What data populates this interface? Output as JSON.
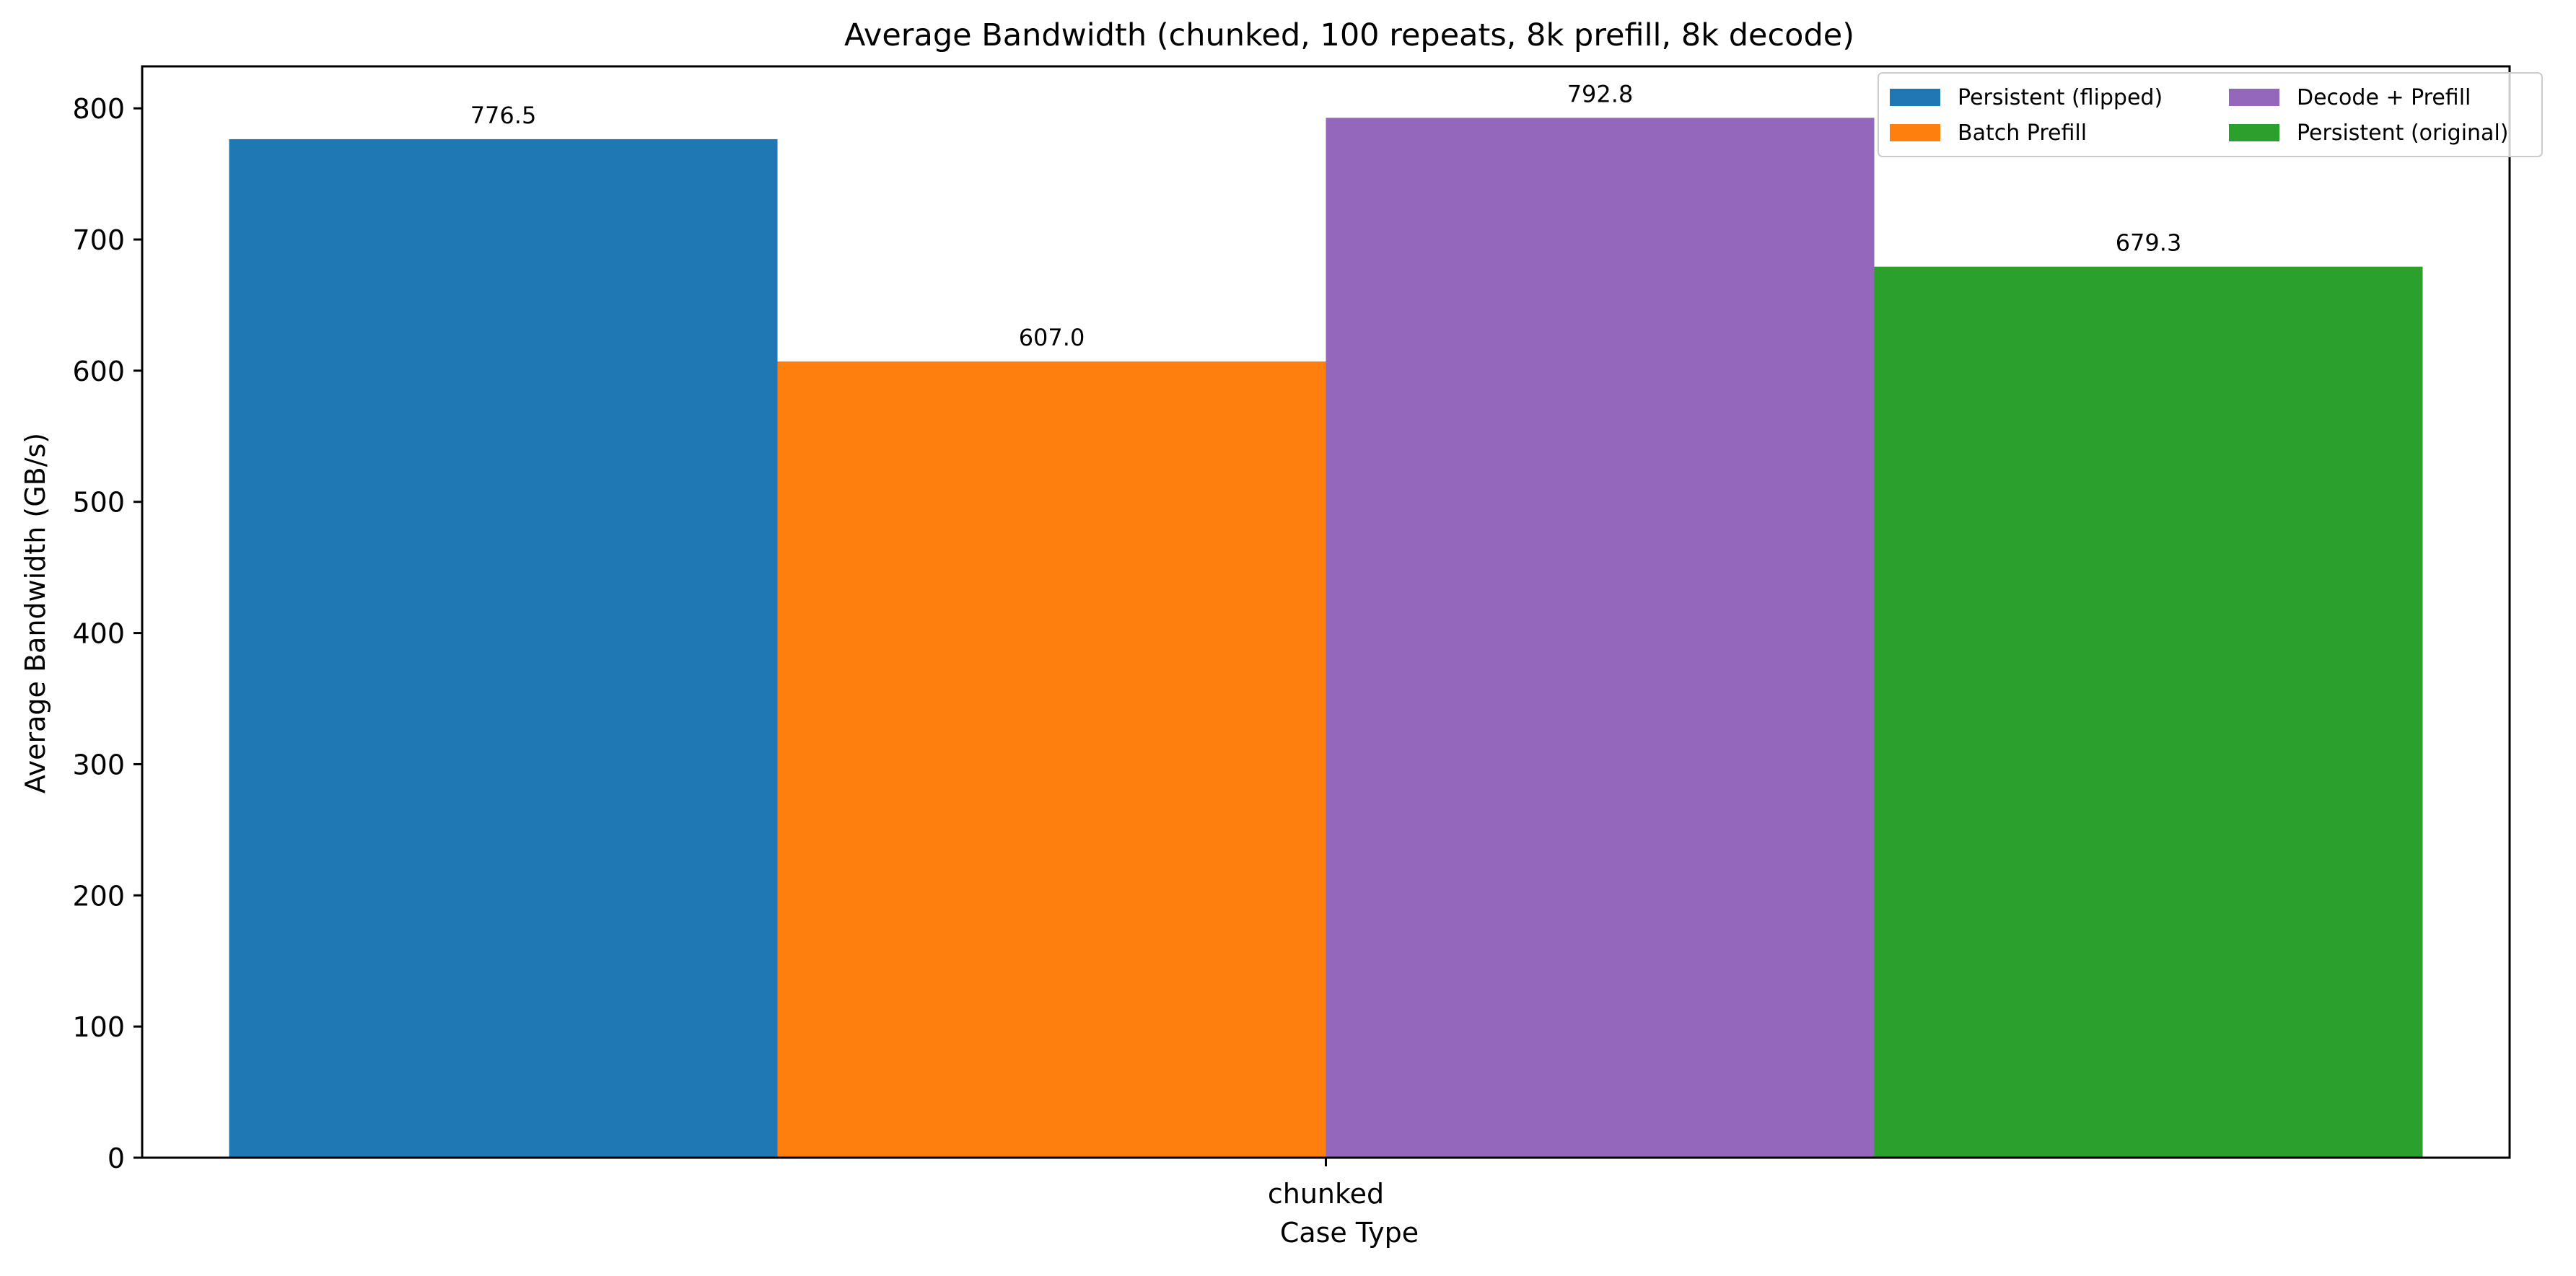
{
  "chart_data": {
    "type": "bar",
    "title": "Average Bandwidth (chunked, 100 repeats, 8k prefill, 8k decode)",
    "xlabel": "Case Type",
    "ylabel": "Average Bandwidth (GB/s)",
    "categories": [
      "chunked"
    ],
    "ylim": [
      0,
      832
    ],
    "yticks": [
      0,
      100,
      200,
      300,
      400,
      500,
      600,
      700,
      800
    ],
    "grid": false,
    "legend_position": "top-right",
    "series": [
      {
        "name": "Persistent (flipped)",
        "values": [
          776.5
        ],
        "labels": [
          "776.5"
        ],
        "color": "#1f77b4"
      },
      {
        "name": "Batch Prefill",
        "values": [
          607.0
        ],
        "labels": [
          "607.0"
        ],
        "color": "#ff7f0e"
      },
      {
        "name": "Decode + Prefill",
        "values": [
          792.8
        ],
        "labels": [
          "792.8"
        ],
        "color": "#9467bd"
      },
      {
        "name": "Persistent (original)",
        "values": [
          679.3
        ],
        "labels": [
          "679.3"
        ],
        "color": "#2ca02c"
      }
    ]
  }
}
